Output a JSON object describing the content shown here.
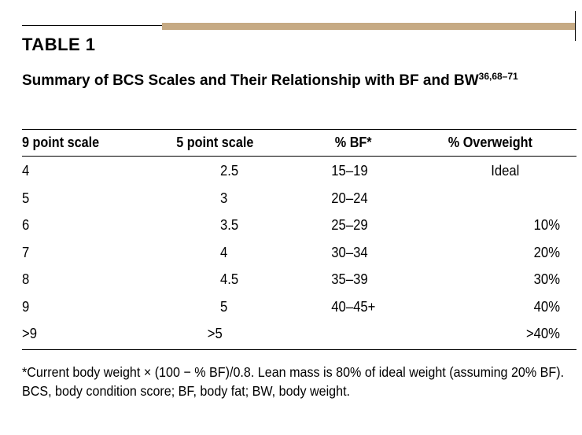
{
  "table_label": "TABLE 1",
  "caption": {
    "text": "Summary of BCS Scales and Their Relationship with BF and BW",
    "superscript": "36,68–71"
  },
  "headers": [
    "9 point scale",
    "5 point scale",
    "% BF*",
    "% Overweight"
  ],
  "rows": [
    {
      "nine": "4",
      "five": "2.5",
      "bf": "15–19",
      "overweight": "Ideal"
    },
    {
      "nine": "5",
      "five": "3",
      "bf": "20–24",
      "overweight": ""
    },
    {
      "nine": "6",
      "five": "3.5",
      "bf": "25–29",
      "overweight": "10%"
    },
    {
      "nine": "7",
      "five": "4",
      "bf": "30–34",
      "overweight": "20%"
    },
    {
      "nine": "8",
      "five": "4.5",
      "bf": "35–39",
      "overweight": "30%"
    },
    {
      "nine": "9",
      "five": "5",
      "bf": "40–45+",
      "overweight": "40%"
    },
    {
      "nine": ">9",
      "five": ">5",
      "bf": "",
      "overweight": ">40%"
    }
  ],
  "footnotes": {
    "formula": "*Current body weight × (100 − % BF)/0.8. Lean mass is 80% of ideal weight (assuming 20% BF).",
    "abbreviations": "BCS, body condition score; BF, body fat; BW, body weight."
  },
  "colors": {
    "accent_rule": "#c6aa84",
    "text": "#000000"
  }
}
